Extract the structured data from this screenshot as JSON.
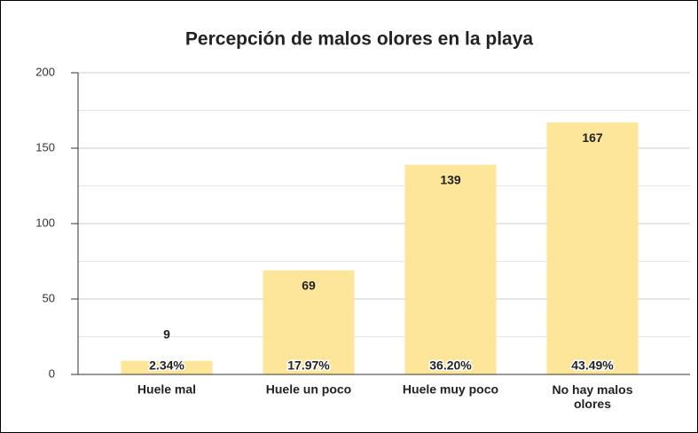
{
  "chart_data": {
    "type": "bar",
    "title": "Percepción de malos olores en la playa",
    "categories": [
      "Huele mal",
      "Huele un poco",
      "Huele muy poco",
      "No hay malos olores"
    ],
    "values": [
      9,
      69,
      139,
      167
    ],
    "percent_labels": [
      "2.34%",
      "17.97%",
      "36.20%",
      "43.49%"
    ],
    "color": "#fde599",
    "ylim": [
      0,
      200
    ],
    "yticks": [
      0,
      50,
      100,
      150,
      200
    ],
    "minor_yticks": [
      25,
      75,
      125,
      175
    ],
    "grid": true
  }
}
